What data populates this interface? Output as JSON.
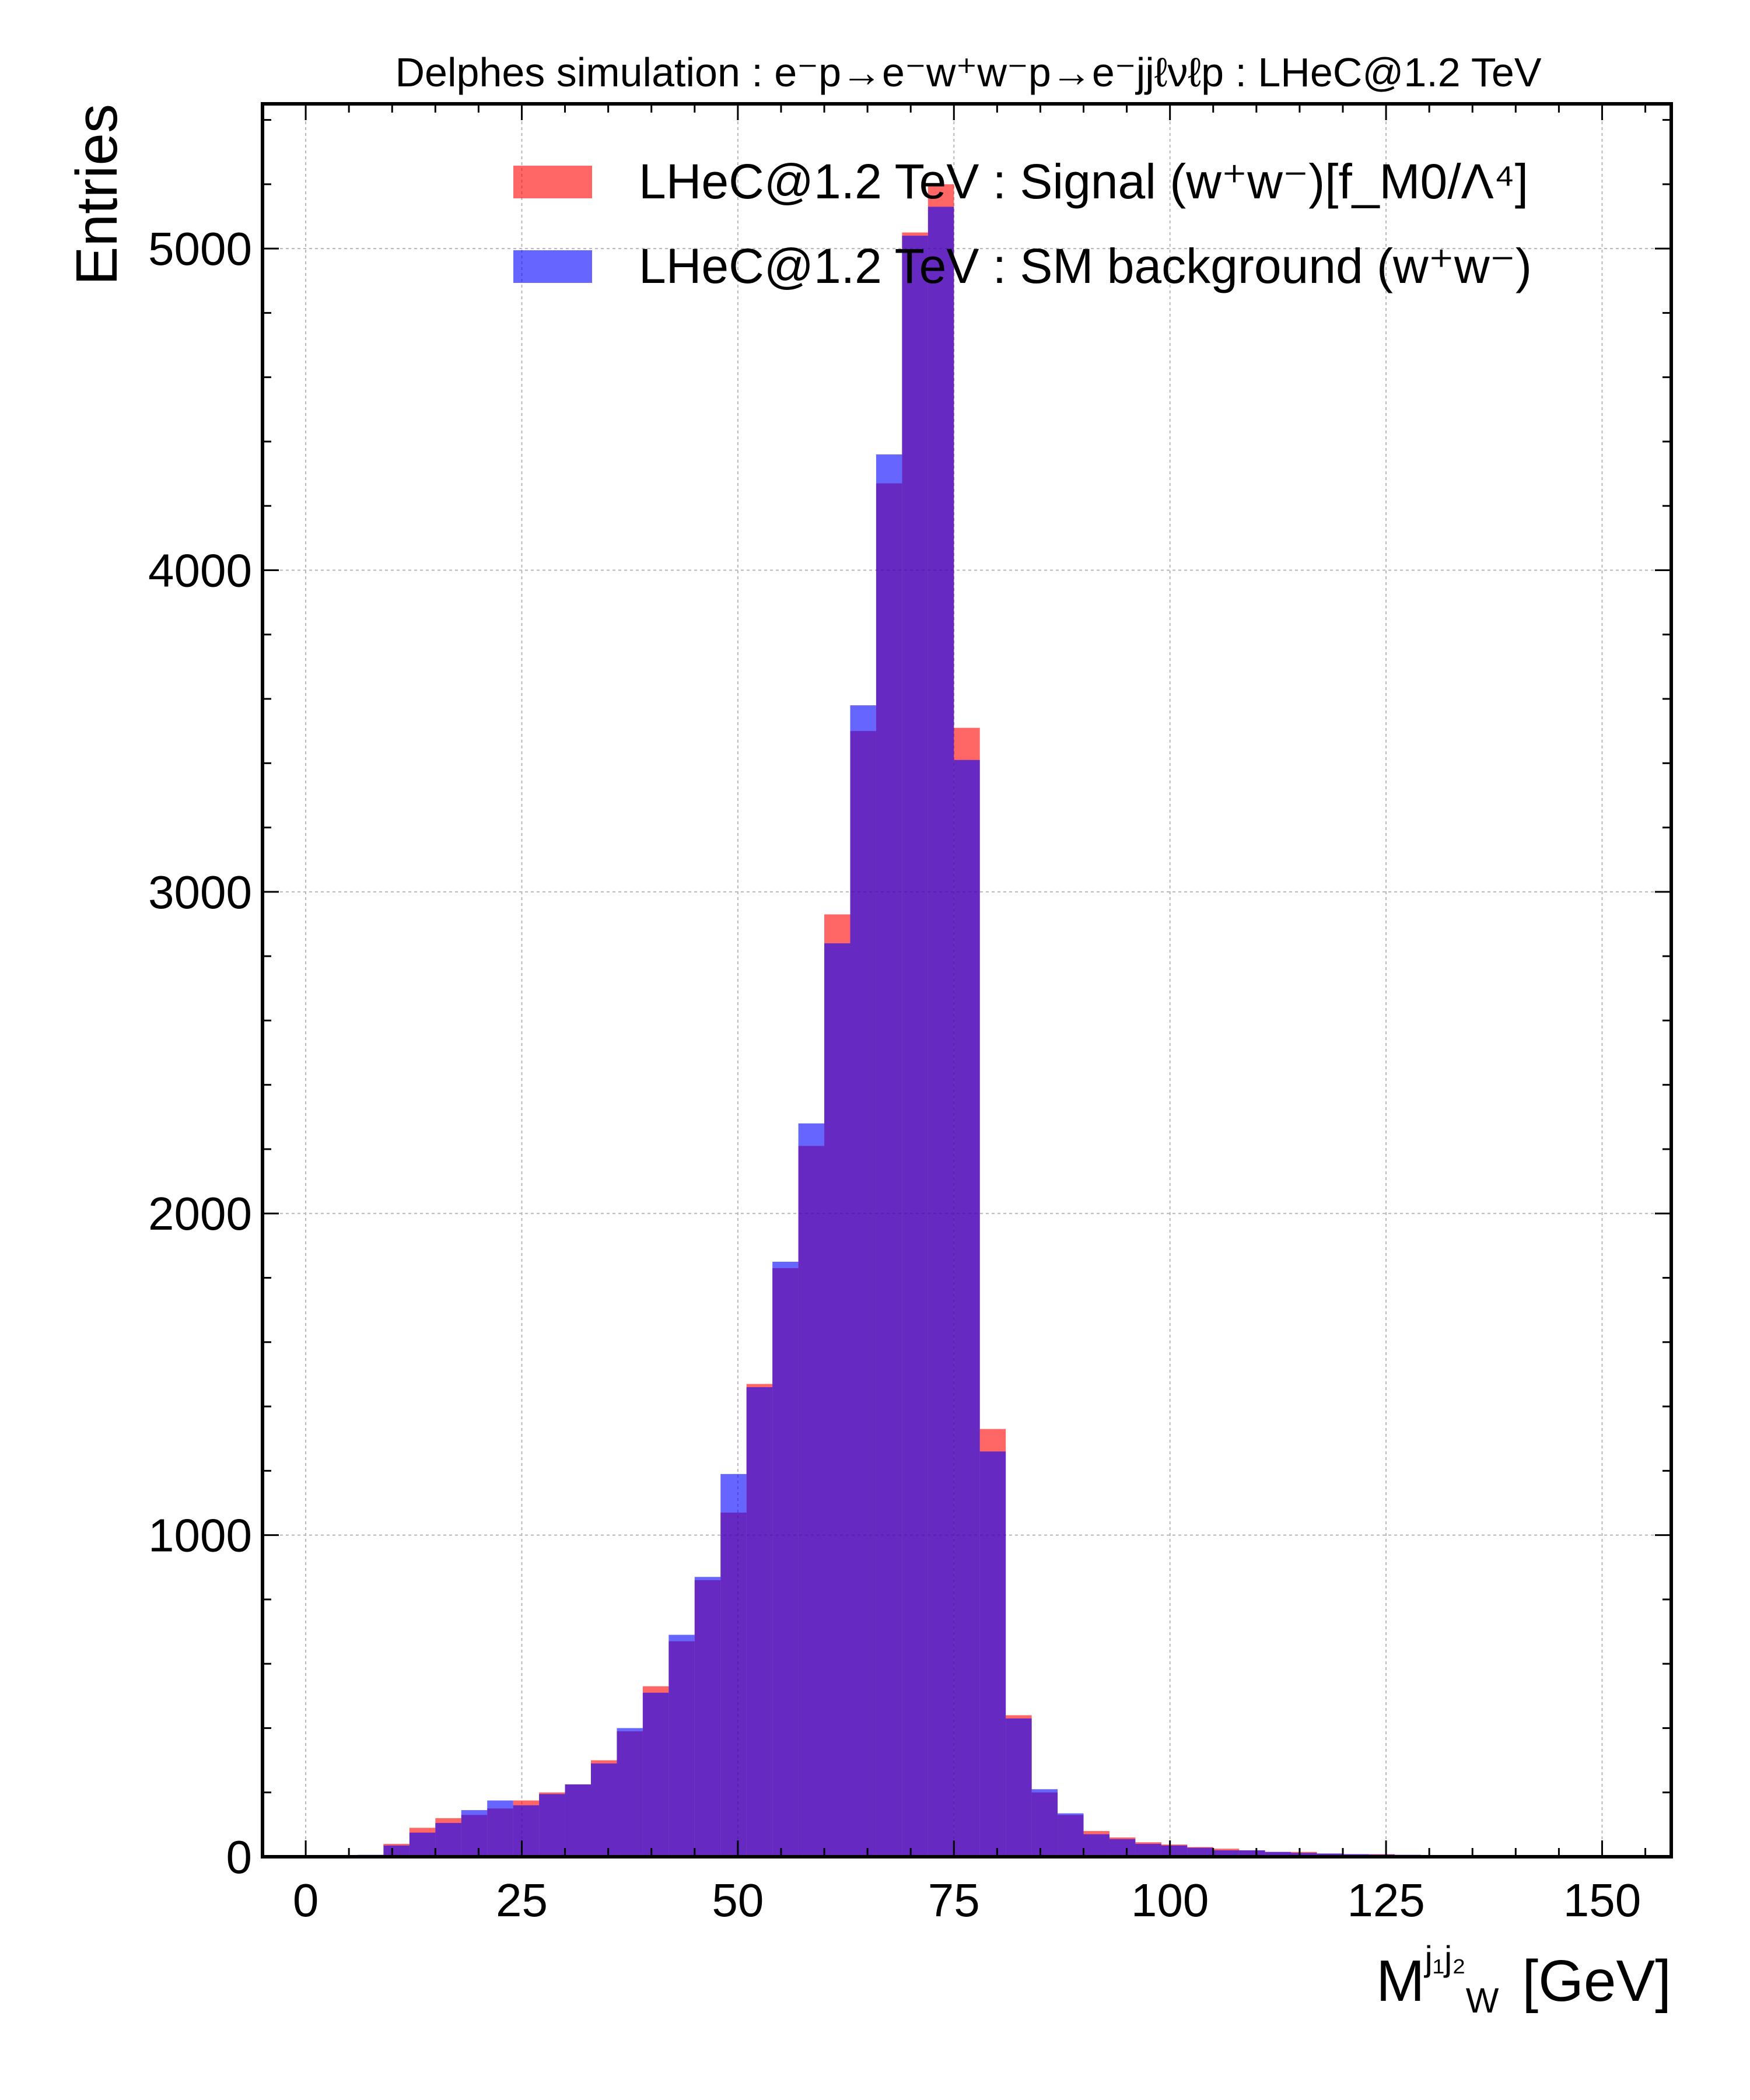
{
  "chart_data": {
    "type": "bar",
    "title": "Delphes simulation : e⁻p→e⁻w⁺w⁻p→e⁻jjℓνℓp : LHeC@1.2 TeV",
    "xlabel": "M_W^{j1j2} [GeV]",
    "xlabel_parts": {
      "main": "M",
      "sub": "W",
      "sup": "j₁j₂",
      "unit": "[GeV]"
    },
    "ylabel": "Entries",
    "xlim": [
      -5,
      158
    ],
    "ylim": [
      0,
      5450
    ],
    "x_ticks": [
      0,
      25,
      50,
      75,
      100,
      125,
      150
    ],
    "y_ticks": [
      0,
      1000,
      2000,
      3000,
      4000,
      5000
    ],
    "grid": true,
    "legend_position": "top-right",
    "bin_width": 3,
    "bin_start": 0,
    "series": [
      {
        "name": "LHeC@1.2 TeV : Signal (w⁺w⁻)[f_M0/Λ⁴]",
        "color": "#ff0000",
        "opacity": 0.6,
        "values": [
          0,
          0,
          3,
          40,
          90,
          120,
          130,
          150,
          175,
          200,
          225,
          300,
          390,
          530,
          670,
          860,
          1070,
          1470,
          1830,
          2210,
          2930,
          3500,
          4270,
          5050,
          5200,
          3510,
          1330,
          440,
          200,
          130,
          80,
          60,
          45,
          38,
          30,
          25,
          20,
          15,
          15,
          10,
          8,
          8,
          6,
          5,
          5,
          4,
          3,
          2,
          2,
          1
        ]
      },
      {
        "name": "LHeC@1.2 TeV : SM background (w⁺w⁻)",
        "color": "#0000ff",
        "opacity": 0.6,
        "values": [
          0,
          0,
          6,
          35,
          75,
          105,
          145,
          175,
          160,
          195,
          225,
          290,
          400,
          510,
          690,
          870,
          1190,
          1460,
          1850,
          2280,
          2840,
          3580,
          4360,
          5040,
          5130,
          3410,
          1260,
          430,
          210,
          135,
          70,
          55,
          40,
          35,
          28,
          20,
          20,
          15,
          12,
          10,
          8,
          7,
          6,
          5,
          4,
          3,
          3,
          2,
          1,
          1
        ]
      }
    ]
  }
}
